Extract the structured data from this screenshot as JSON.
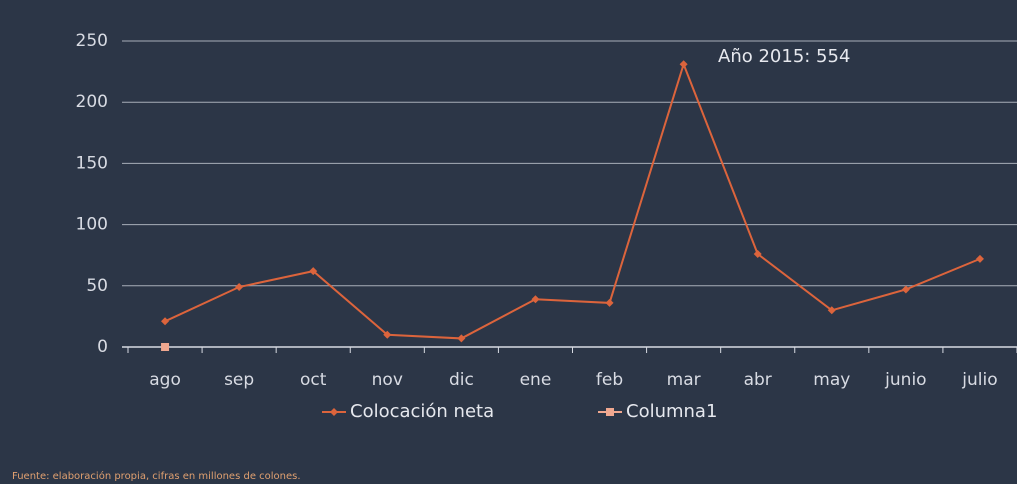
{
  "chart_data": {
    "type": "line",
    "categories": [
      "ago",
      "sep",
      "oct",
      "nov",
      "dic",
      "ene",
      "feb",
      "mar",
      "abr",
      "may",
      "junio",
      "julio"
    ],
    "series": [
      {
        "name": "Colocación neta",
        "color": "#dc643c",
        "values": [
          21,
          49,
          62,
          10,
          7,
          39,
          36,
          231,
          76,
          30,
          47,
          72
        ]
      },
      {
        "name": "Columna1",
        "color": "#f0a890",
        "values": [
          0,
          null,
          null,
          null,
          null,
          null,
          null,
          null,
          null,
          null,
          null,
          null
        ]
      }
    ],
    "ylim": [
      0,
      250
    ],
    "yticks": [
      0,
      50,
      100,
      150,
      200,
      250
    ],
    "grid": true,
    "annotation": "Año 2015: 554",
    "note": "Fuente: elaboración propia, cifras en millones de colones."
  }
}
